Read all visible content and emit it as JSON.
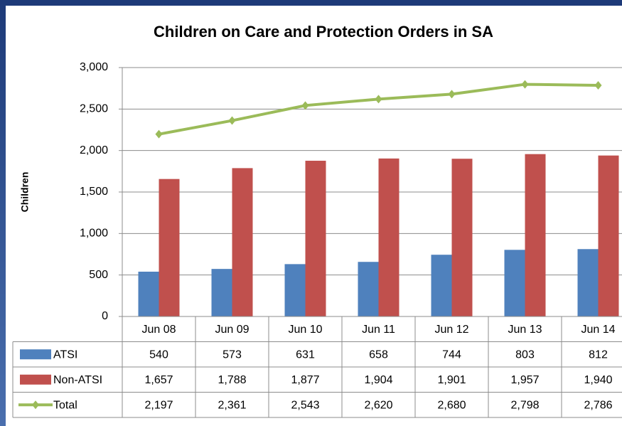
{
  "chart_data": {
    "type": "bar",
    "title": "Children on Care and Protection Orders in SA",
    "y_label": "Children",
    "categories": [
      "Jun 08",
      "Jun 09",
      "Jun 10",
      "Jun 11",
      "Jun 12",
      "Jun 13",
      "Jun 14"
    ],
    "series": [
      {
        "name": "ATSI",
        "type": "bar",
        "color": "#4f81bd",
        "values": [
          540,
          573,
          631,
          658,
          744,
          803,
          812
        ],
        "value_labels": [
          "540",
          "573",
          "631",
          "658",
          "744",
          "803",
          "812"
        ]
      },
      {
        "name": "Non-ATSI",
        "type": "bar",
        "color": "#c0504d",
        "values": [
          1657,
          1788,
          1877,
          1904,
          1901,
          1957,
          1940
        ],
        "value_labels": [
          "1,657",
          "1,788",
          "1,877",
          "1,904",
          "1,901",
          "1,957",
          "1,940"
        ]
      },
      {
        "name": "Total",
        "type": "line",
        "color": "#9bbb59",
        "values": [
          2197,
          2361,
          2543,
          2620,
          2680,
          2798,
          2786
        ],
        "value_labels": [
          "2,197",
          "2,361",
          "2,543",
          "2,620",
          "2,680",
          "2,798",
          "2,786"
        ]
      }
    ],
    "ylim": [
      0,
      3000
    ],
    "yticks": [
      0,
      500,
      {
        "value": 1000,
        "label": "1,000"
      },
      {
        "value": 1500,
        "label": "1,500"
      },
      {
        "value": 2000,
        "label": "2,000"
      },
      {
        "value": 2500,
        "label": "2,500"
      },
      {
        "value": 3000,
        "label": "3,000"
      }
    ],
    "grid": true
  }
}
